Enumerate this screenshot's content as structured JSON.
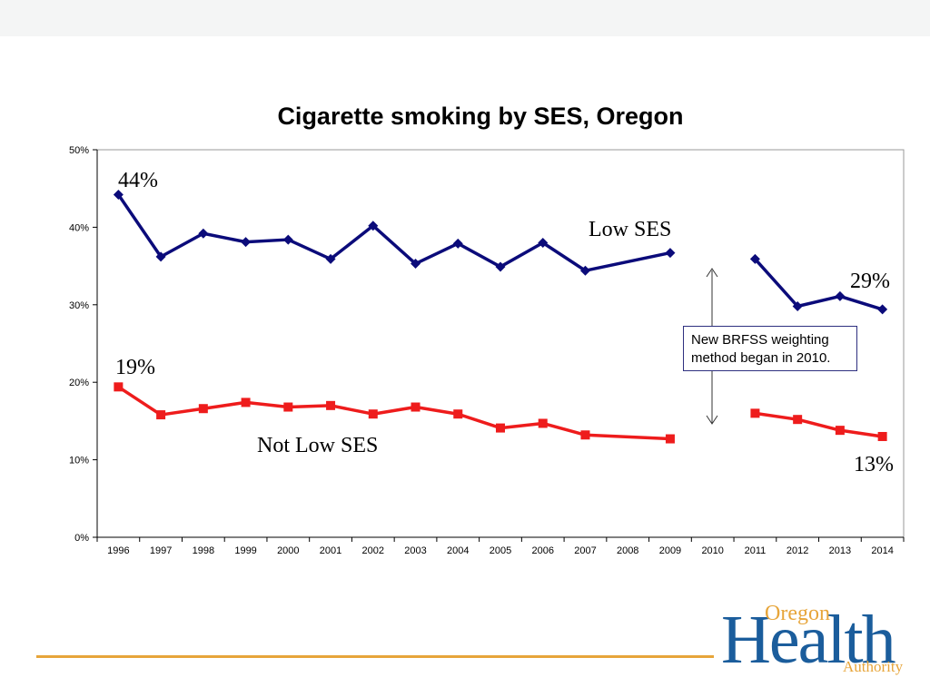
{
  "slide": {
    "note": "New BRFSS weighting method began in 2010.",
    "logo": {
      "line1": "Oregon",
      "line2": "Health",
      "line3": "Authority"
    }
  },
  "colors": {
    "low_ses": "#0b0b7a",
    "not_low_ses": "#ee1c1c",
    "accent_rule": "#e7a53a",
    "logo_blue": "#1b5d9c"
  },
  "chart_data": {
    "type": "line",
    "title": "Cigarette smoking by SES, Oregon",
    "xlabel": "",
    "ylabel": "",
    "categories": [
      "1996",
      "1997",
      "1998",
      "1999",
      "2000",
      "2001",
      "2002",
      "2003",
      "2004",
      "2005",
      "2006",
      "2007",
      "2008",
      "2009",
      "2010",
      "2011",
      "2012",
      "2013",
      "2014"
    ],
    "yticks": [
      "0%",
      "10%",
      "20%",
      "30%",
      "40%",
      "50%"
    ],
    "ylim": [
      0,
      50
    ],
    "grid": false,
    "series": [
      {
        "name": "Low SES",
        "marker": "diamond",
        "color": "#0b0b7a",
        "values": [
          44.2,
          36.2,
          39.2,
          38.1,
          38.4,
          35.9,
          40.2,
          35.3,
          37.9,
          34.9,
          38.0,
          34.4,
          null,
          36.7,
          null,
          35.9,
          29.8,
          31.1,
          29.4
        ]
      },
      {
        "name": "Not Low SES",
        "marker": "square",
        "color": "#ee1c1c",
        "values": [
          19.4,
          15.8,
          16.6,
          17.4,
          16.8,
          17.0,
          15.9,
          16.8,
          15.9,
          14.1,
          14.7,
          13.2,
          null,
          12.7,
          null,
          16.0,
          15.2,
          13.8,
          13.0
        ]
      }
    ],
    "annotations": [
      {
        "text": "44%"
      },
      {
        "text": "Low SES"
      },
      {
        "text": "29%"
      },
      {
        "text": "19%"
      },
      {
        "text": "Not Low SES"
      },
      {
        "text": "13%"
      }
    ]
  }
}
